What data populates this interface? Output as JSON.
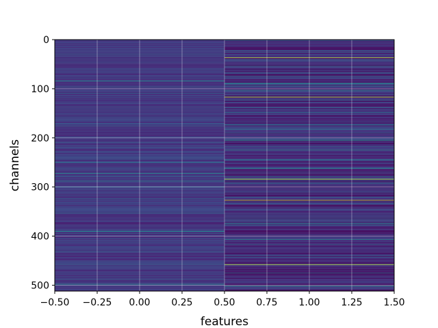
{
  "chart_data": {
    "type": "heatmap",
    "title": "",
    "xlabel": "features",
    "ylabel": "channels",
    "xlim": [
      -0.5,
      1.5
    ],
    "ylim": [
      512,
      0
    ],
    "x_ticks": [
      -0.5,
      -0.25,
      0.0,
      0.25,
      0.5,
      0.75,
      1.0,
      1.25,
      1.5
    ],
    "x_tick_labels": [
      "−0.50",
      "−0.25",
      "0.00",
      "0.25",
      "0.50",
      "0.75",
      "1.00",
      "1.25",
      "1.50"
    ],
    "y_ticks": [
      0,
      100,
      200,
      300,
      400,
      500
    ],
    "y_tick_labels": [
      "0",
      "100",
      "200",
      "300",
      "400",
      "500"
    ],
    "grid": true,
    "colormap": "viridis",
    "rows": 512,
    "columns": [
      0,
      1
    ],
    "highlights": [
      {
        "column": 0,
        "rows": [
          84,
          272,
          288,
          390,
          498
        ],
        "level": "medium"
      },
      {
        "column": 1,
        "rows": [
          37,
          117,
          284,
          327,
          458
        ],
        "level": "high"
      },
      {
        "column": 1,
        "rows": [
          89,
          103,
          205,
          225,
          262,
          374,
          407,
          502
        ],
        "level": "medium"
      }
    ],
    "colors": {
      "low": "#440154",
      "mid": "#3b528b",
      "teal": "#21918c",
      "green": "#5ec962",
      "high": "#fde725"
    }
  }
}
